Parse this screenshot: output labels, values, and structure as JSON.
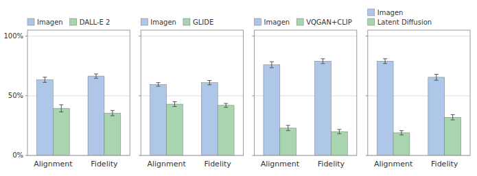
{
  "chart_data": [
    {
      "type": "bar",
      "categories": [
        "Alignment",
        "Fidelity"
      ],
      "series": [
        {
          "name": "Imagen",
          "color": "#aec6e8",
          "values": [
            0.634,
            0.665
          ],
          "errors": [
            0.022,
            0.018
          ]
        },
        {
          "name": "DALL-E 2",
          "color": "#a8d5b0",
          "values": [
            0.395,
            0.355
          ],
          "errors": [
            0.03,
            0.022
          ]
        }
      ],
      "ylim": [
        0.0,
        1.05
      ],
      "yticks": [
        {
          "value": 0.0,
          "label": "0%"
        },
        {
          "value": 0.5,
          "label": "50%"
        },
        {
          "value": 1.0,
          "label": "100%"
        }
      ],
      "grid": true,
      "legend": "top"
    },
    {
      "type": "bar",
      "categories": [
        "Alignment",
        "Fidelity"
      ],
      "series": [
        {
          "name": "Imagen",
          "color": "#aec6e8",
          "values": [
            0.595,
            0.61
          ],
          "errors": [
            0.015,
            0.018
          ]
        },
        {
          "name": "GLIDE",
          "color": "#a8d5b0",
          "values": [
            0.43,
            0.42
          ],
          "errors": [
            0.02,
            0.016
          ]
        }
      ],
      "ylim": [
        0.0,
        1.05
      ],
      "yticks": [
        0,
        0.5,
        1
      ],
      "tick_labels": "x",
      "grid": true,
      "legend": "top"
    },
    {
      "type": "bar",
      "categories": [
        "Alignment",
        "Fidelity"
      ],
      "series": [
        {
          "name": "Imagen",
          "color": "#aec6e8",
          "values": [
            0.76,
            0.79
          ],
          "errors": [
            0.025,
            0.02
          ]
        },
        {
          "name": "VQGAN+CLIP",
          "color": "#a8d5b0",
          "values": [
            0.23,
            0.2
          ],
          "errors": [
            0.022,
            0.018
          ]
        }
      ],
      "ylim": [
        0.0,
        1.05
      ],
      "yticks": [
        0,
        0.5,
        1
      ],
      "tick_labels": "x",
      "grid": true,
      "legend": "top"
    },
    {
      "type": "bar",
      "categories": [
        "Alignment",
        "Fidelity"
      ],
      "series": [
        {
          "name": "Imagen",
          "color": "#aec6e8",
          "values": [
            0.79,
            0.655
          ],
          "errors": [
            0.02,
            0.025
          ]
        },
        {
          "name": "Latent Diffusion",
          "color": "#a8d5b0",
          "values": [
            0.19,
            0.32
          ],
          "errors": [
            0.018,
            0.022
          ]
        }
      ],
      "ylim": [
        0.0,
        1.05
      ],
      "yticks": [
        0,
        0.5,
        1
      ],
      "tick_labels": "x",
      "grid": true,
      "legend": "top"
    }
  ]
}
